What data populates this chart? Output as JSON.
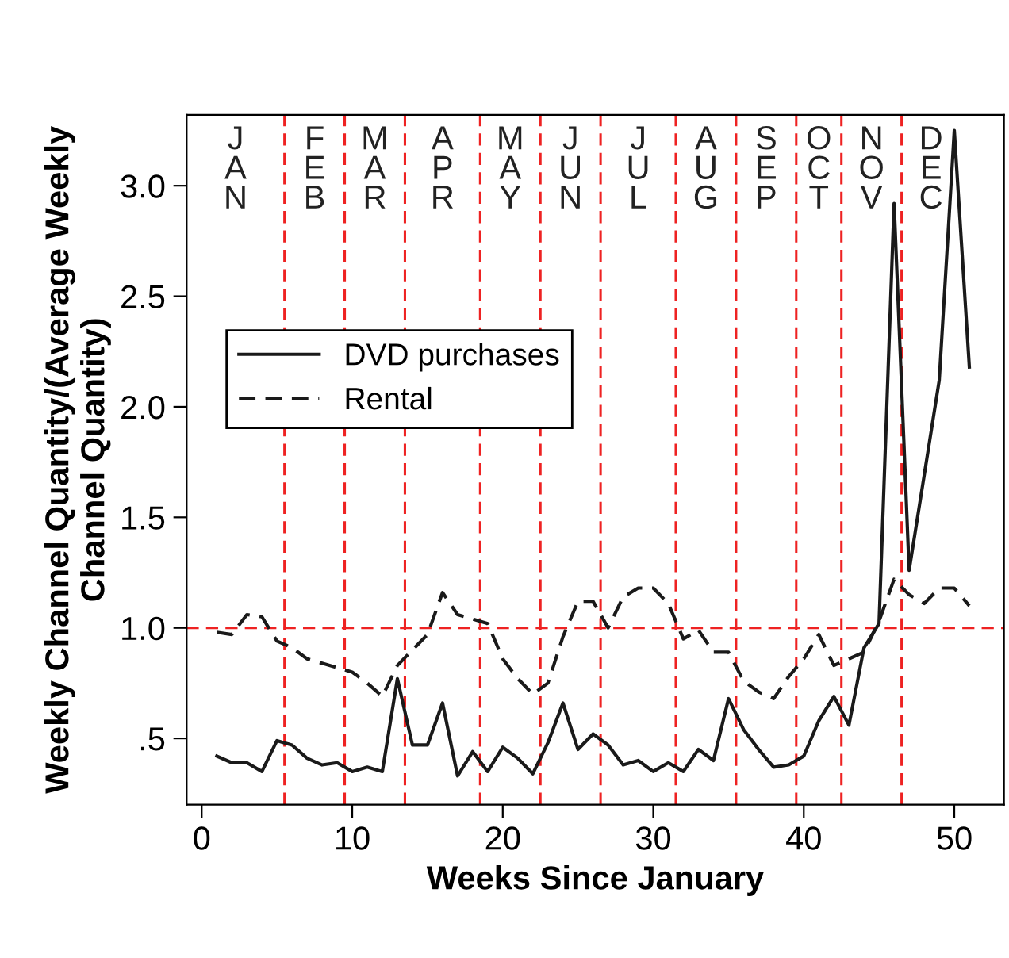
{
  "chart_data": {
    "type": "line",
    "xlabel": "Weeks Since January",
    "ylabel": "Weekly Channel Quantity/(Average Weekly\nChannel Quantity)",
    "x": [
      1,
      2,
      3,
      4,
      5,
      6,
      7,
      8,
      9,
      10,
      11,
      12,
      13,
      14,
      15,
      16,
      17,
      18,
      19,
      20,
      21,
      22,
      23,
      24,
      25,
      26,
      27,
      28,
      29,
      30,
      31,
      32,
      33,
      34,
      35,
      36,
      37,
      38,
      39,
      40,
      41,
      42,
      43,
      44,
      45,
      46,
      47,
      48,
      49,
      50,
      51
    ],
    "series": [
      {
        "name": "DVD purchases",
        "color": "#1a1a1a",
        "line_style": "solid",
        "values": [
          0.42,
          0.39,
          0.39,
          0.35,
          0.49,
          0.47,
          0.41,
          0.38,
          0.39,
          0.35,
          0.37,
          0.35,
          0.77,
          0.47,
          0.47,
          0.66,
          0.33,
          0.44,
          0.35,
          0.46,
          0.41,
          0.34,
          0.48,
          0.66,
          0.45,
          0.52,
          0.47,
          0.38,
          0.4,
          0.35,
          0.39,
          0.35,
          0.45,
          0.4,
          0.68,
          0.54,
          0.45,
          0.37,
          0.38,
          0.42,
          0.58,
          0.69,
          0.56,
          0.91,
          1.02,
          2.92,
          1.26,
          1.69,
          2.12,
          3.25,
          2.18
        ]
      },
      {
        "name": "Rental",
        "color": "#1a1a1a",
        "line_style": "dashed",
        "values": [
          0.98,
          0.97,
          1.06,
          1.05,
          0.94,
          0.91,
          0.86,
          0.84,
          0.82,
          0.8,
          0.75,
          0.69,
          0.83,
          0.9,
          0.97,
          1.16,
          1.06,
          1.04,
          1.02,
          0.86,
          0.77,
          0.7,
          0.75,
          0.96,
          1.12,
          1.12,
          1.0,
          1.14,
          1.18,
          1.18,
          1.11,
          0.95,
          0.99,
          0.89,
          0.89,
          0.76,
          0.71,
          0.68,
          0.78,
          0.86,
          0.97,
          0.83,
          0.86,
          0.89,
          1.03,
          1.22,
          1.15,
          1.11,
          1.18,
          1.18,
          1.1
        ]
      }
    ],
    "xlim": [
      -1,
      53.3
    ],
    "xticks": [
      0,
      10,
      20,
      30,
      40,
      50
    ],
    "ylim": [
      0.2,
      3.32
    ],
    "yticks": [
      {
        "value": 0.5,
        "label": ".5"
      },
      {
        "value": 1.0,
        "label": "1.0"
      },
      {
        "value": 1.5,
        "label": "1.5"
      },
      {
        "value": 2.0,
        "label": "2.0"
      },
      {
        "value": 2.5,
        "label": "2.5"
      },
      {
        "value": 3.0,
        "label": "3.0"
      }
    ],
    "ref_lines": [
      {
        "axis": "y",
        "value": 1.0,
        "color": "#ee2222",
        "line_style": "dashed"
      },
      {
        "axis": "x",
        "value": 5.5,
        "color": "#ee2222",
        "line_style": "dashed"
      },
      {
        "axis": "x",
        "value": 9.5,
        "color": "#ee2222",
        "line_style": "dashed"
      },
      {
        "axis": "x",
        "value": 13.5,
        "color": "#ee2222",
        "line_style": "dashed"
      },
      {
        "axis": "x",
        "value": 18.5,
        "color": "#ee2222",
        "line_style": "dashed"
      },
      {
        "axis": "x",
        "value": 22.5,
        "color": "#ee2222",
        "line_style": "dashed"
      },
      {
        "axis": "x",
        "value": 26.5,
        "color": "#ee2222",
        "line_style": "dashed"
      },
      {
        "axis": "x",
        "value": 31.5,
        "color": "#ee2222",
        "line_style": "dashed"
      },
      {
        "axis": "x",
        "value": 35.5,
        "color": "#ee2222",
        "line_style": "dashed"
      },
      {
        "axis": "x",
        "value": 39.5,
        "color": "#ee2222",
        "line_style": "dashed"
      },
      {
        "axis": "x",
        "value": 42.5,
        "color": "#ee2222",
        "line_style": "dashed"
      },
      {
        "axis": "x",
        "value": 46.5,
        "color": "#ee2222",
        "line_style": "dashed"
      }
    ],
    "annotations": [
      "JAN",
      "FEB",
      "MAR",
      "APR",
      "MAY",
      "JUN",
      "JUL",
      "AUG",
      "SEP",
      "OCT",
      "NOV",
      "DEC"
    ],
    "legend": "left",
    "grid": false,
    "marker": "none"
  }
}
